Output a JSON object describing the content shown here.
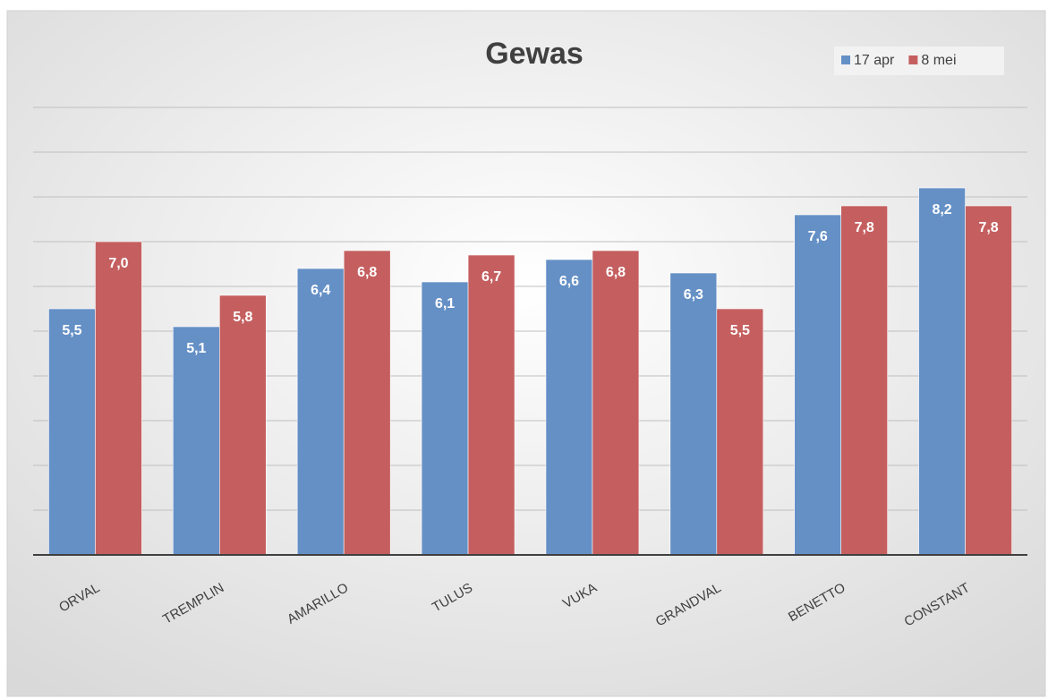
{
  "chart_data": {
    "type": "bar",
    "title": "Gewas",
    "categories": [
      "ORVAL",
      "TREMPLIN",
      "AMARILLO",
      "TULUS",
      "VUKA",
      "GRANDVAL",
      "BENETTO",
      "CONSTANT"
    ],
    "series": [
      {
        "name": "17 apr",
        "color": "#6590c6",
        "values": [
          5.5,
          5.1,
          6.4,
          6.1,
          6.6,
          6.3,
          7.6,
          8.2
        ],
        "value_labels": [
          "5,5",
          "5,1",
          "6,4",
          "6,1",
          "6,6",
          "6,3",
          "7,6",
          "8,2"
        ]
      },
      {
        "name": "8 mei",
        "color": "#c55f5f",
        "values": [
          7.0,
          5.8,
          6.8,
          6.7,
          6.8,
          5.5,
          7.8,
          7.8
        ],
        "value_labels": [
          "7,0",
          "5,8",
          "6,8",
          "6,7",
          "6,8",
          "5,5",
          "7,8",
          "7,8"
        ]
      }
    ],
    "ylim": [
      0,
      10
    ],
    "yticks": [
      0,
      1,
      2,
      3,
      4,
      5,
      6,
      7,
      8,
      9,
      10
    ],
    "y_tick_labels": false,
    "grid": true,
    "legend": "top-right"
  }
}
